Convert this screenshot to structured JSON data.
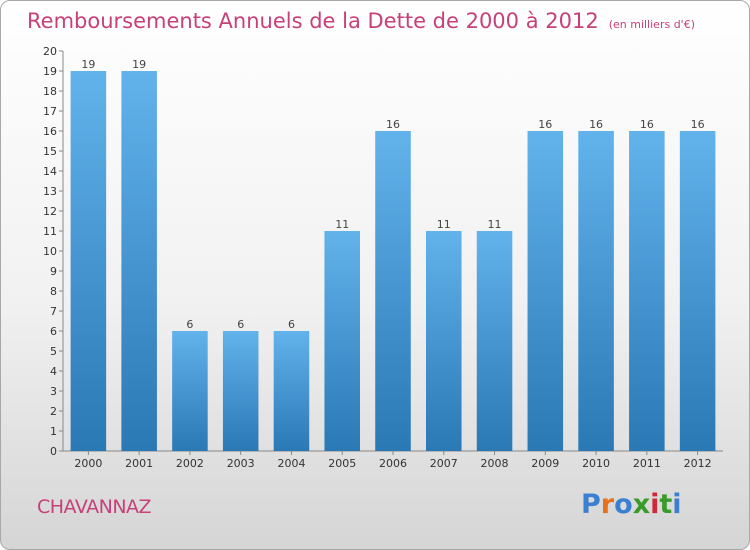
{
  "title": "Remboursements Annuels de la Dette de 2000 à 2012",
  "subtitle": "(en milliers d'€)",
  "town": "CHAVANNAZ",
  "logo": {
    "text": "Proxiti",
    "letters": [
      "P",
      "r",
      "o",
      "x",
      "i",
      "t",
      "i"
    ],
    "colors": [
      "#3a7fd0",
      "#e8701a",
      "#3a7fd0",
      "#3a9a2a",
      "#d02a3a",
      "#3a9a2a",
      "#3a7fd0"
    ]
  },
  "colors": {
    "bar_top": "#62b2ec",
    "bar_bottom": "#2a78b4",
    "title": "#c8407a",
    "grid": "#d0d0d0"
  },
  "chart_data": {
    "type": "bar",
    "categories": [
      "2000",
      "2001",
      "2002",
      "2003",
      "2004",
      "2005",
      "2006",
      "2007",
      "2008",
      "2009",
      "2010",
      "2011",
      "2012"
    ],
    "values": [
      19,
      19,
      6,
      6,
      6,
      11,
      16,
      11,
      11,
      16,
      16,
      16,
      16
    ],
    "data_labels": [
      "19",
      "19",
      "6",
      "6",
      "6",
      "11",
      "16",
      "11",
      "11",
      "16",
      "16",
      "16",
      "16"
    ],
    "yticks": [
      0,
      1,
      2,
      3,
      4,
      5,
      6,
      7,
      8,
      9,
      10,
      11,
      12,
      13,
      14,
      15,
      16,
      17,
      18,
      19,
      20
    ],
    "ylim": [
      0,
      20
    ],
    "grid": false
  }
}
